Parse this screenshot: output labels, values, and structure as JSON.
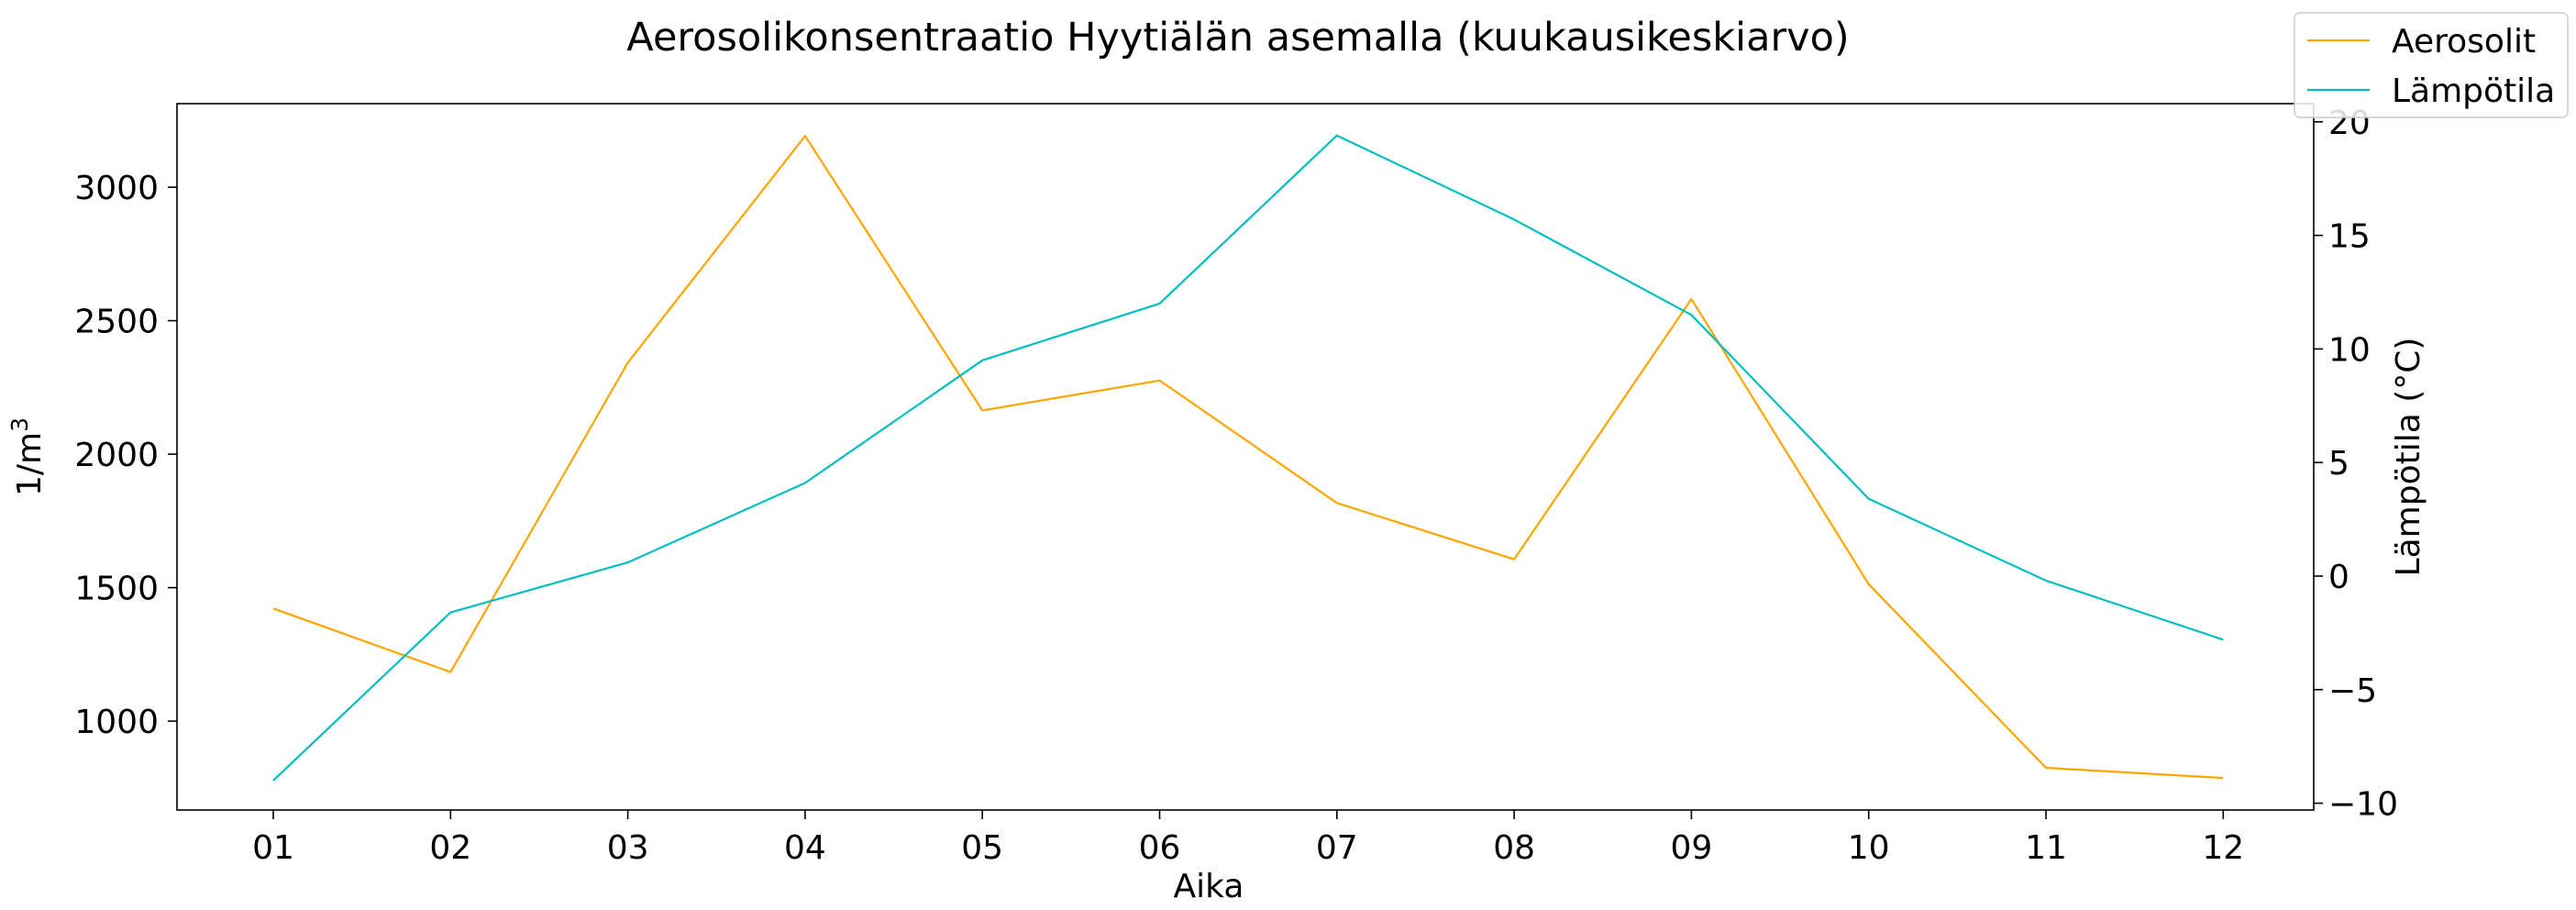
{
  "chart_data": {
    "type": "line",
    "title": "Aerosolikonsentraatio Hyytiälän asemalla (kuukausikeskiarvo)",
    "xlabel": "Aika",
    "ylabel": "1/m",
    "ylabel_superscript": "3",
    "y2label": "Lämpötila (°C)",
    "categories": [
      "01",
      "02",
      "03",
      "04",
      "05",
      "06",
      "07",
      "08",
      "09",
      "10",
      "11",
      "12"
    ],
    "ylim": [
      667,
      3313
    ],
    "yticks": [
      1000,
      1500,
      2000,
      2500,
      3000
    ],
    "y2lim": [
      -10.3,
      20.8
    ],
    "y2ticks": [
      -10,
      -5,
      0,
      5,
      10,
      15,
      20
    ],
    "y2tick_labels": [
      "−10",
      "−5",
      "0",
      "5",
      "10",
      "15",
      "20"
    ],
    "legend_position": "top-right",
    "series": [
      {
        "name": "Aerosolit",
        "axis": "left",
        "color": "#FFA500",
        "values": [
          1422,
          1184,
          2343,
          3192,
          2164,
          2276,
          1817,
          1606,
          2581,
          1513,
          825,
          787
        ]
      },
      {
        "name": "Lämpötila",
        "axis": "right",
        "color": "#00BFBF",
        "values": [
          -9.0,
          -1.6,
          0.6,
          4.1,
          9.5,
          12.0,
          19.4,
          15.7,
          11.5,
          3.4,
          -0.2,
          -2.8
        ]
      }
    ]
  }
}
